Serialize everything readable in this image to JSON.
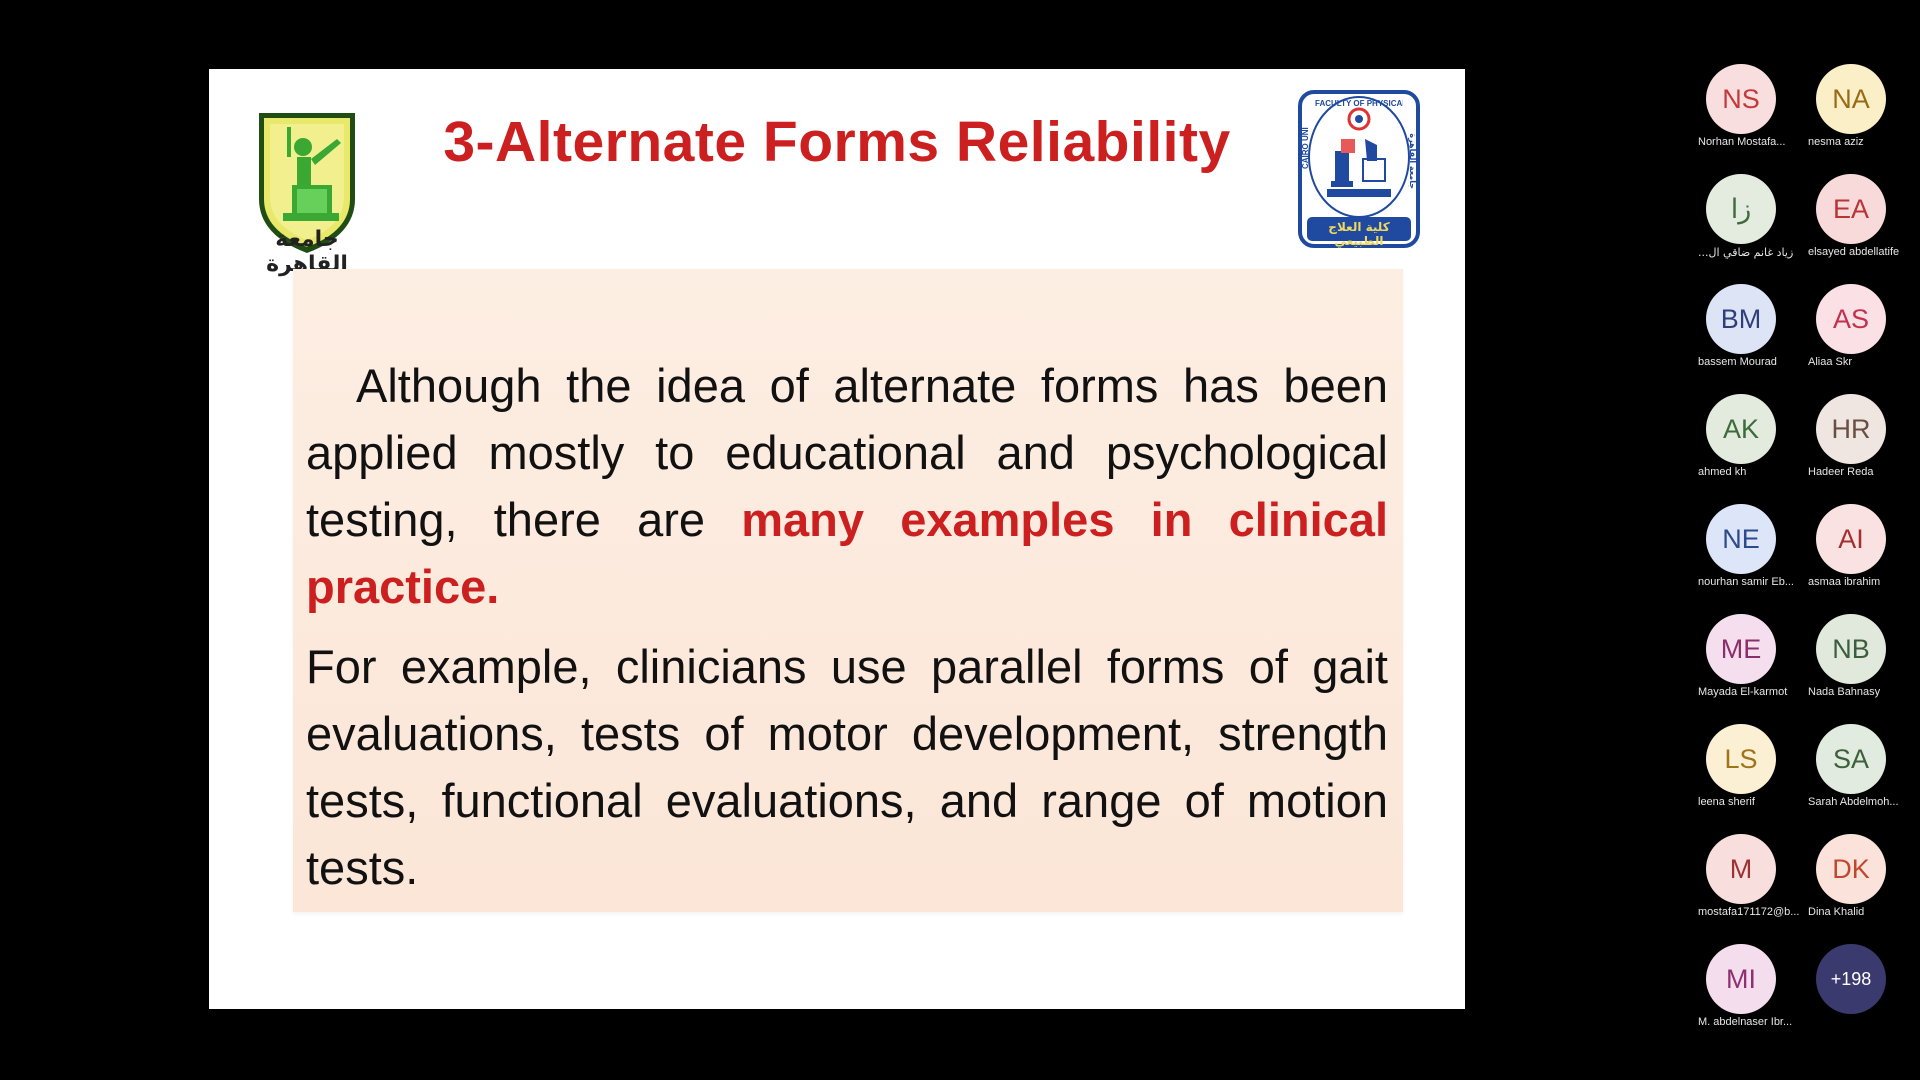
{
  "slide": {
    "title": "3-Alternate Forms Reliability",
    "logo_left_text": "جامعة القاهرة",
    "logo_right_text_top": "FACULTY OF PHYSICAL THERAPY",
    "logo_right_text_side_left": "CAIRO UNI",
    "logo_right_text_side_right": "جامعة القاهرة",
    "logo_right_text_bottom": "كلية العلاج الطبيعي",
    "para1_text": "Although the idea of alternate forms has been applied mostly to educational and psychological testing, there are ",
    "para1_emphasis": "many examples in clinical practice.",
    "para2_text": "For example, clinicians use parallel forms of gait evaluations, tests of motor development, strength tests, functional evaluations, and range of motion tests."
  },
  "participants": [
    {
      "initials": "NS",
      "name": "Norhan Mostafa...",
      "bg": "#f8dede",
      "fg": "#c23a3a"
    },
    {
      "initials": "NA",
      "name": "nesma aziz",
      "bg": "#fbefc8",
      "fg": "#9a6a14"
    },
    {
      "initials": "زا",
      "name": "زياد غانم ضاقي ال...",
      "bg": "#e4ece0",
      "fg": "#3f6a3f"
    },
    {
      "initials": "EA",
      "name": "elsayed abdellatife",
      "bg": "#f9dada",
      "fg": "#b83535"
    },
    {
      "initials": "BM",
      "name": "bassem Mourad",
      "bg": "#dde4f6",
      "fg": "#2f3f7a"
    },
    {
      "initials": "AS",
      "name": "Aliaa Skr",
      "bg": "#fbe0e6",
      "fg": "#c0324d"
    },
    {
      "initials": "AK",
      "name": "ahmed kh",
      "bg": "#e2ebdd",
      "fg": "#3c6b3c"
    },
    {
      "initials": "HR",
      "name": "Hadeer Reda",
      "bg": "#efe6e2",
      "fg": "#6b4e43"
    },
    {
      "initials": "NE",
      "name": "nourhan samir Eb...",
      "bg": "#dce6f8",
      "fg": "#2d4a8a"
    },
    {
      "initials": "AI",
      "name": "asmaa ibrahim",
      "bg": "#fbe2e2",
      "fg": "#a33030"
    },
    {
      "initials": "ME",
      "name": "Mayada El-karmot",
      "bg": "#f5dfee",
      "fg": "#8a2e6c"
    },
    {
      "initials": "NB",
      "name": "Nada Bahnasy",
      "bg": "#e0e9dc",
      "fg": "#3c5e3c"
    },
    {
      "initials": "LS",
      "name": "leena sherif",
      "bg": "#fcf0d4",
      "fg": "#a0731a"
    },
    {
      "initials": "SA",
      "name": "Sarah Abdelmoh...",
      "bg": "#e2ebdf",
      "fg": "#3d613d"
    },
    {
      "initials": "M",
      "name": "mostafa171172@b...",
      "bg": "#f9dede",
      "fg": "#9b3333"
    },
    {
      "initials": "DK",
      "name": "Dina Khalid",
      "bg": "#fbe3dc",
      "fg": "#c2482d"
    },
    {
      "initials": "MI",
      "name": "M. abdelnaser Ibr...",
      "bg": "#f4deed",
      "fg": "#8e3172"
    }
  ],
  "more_participants": "+198",
  "colors": {
    "title_red": "#cc1f1f",
    "content_bg": "#fcebde",
    "more_btn_bg": "#3a3a6e"
  }
}
